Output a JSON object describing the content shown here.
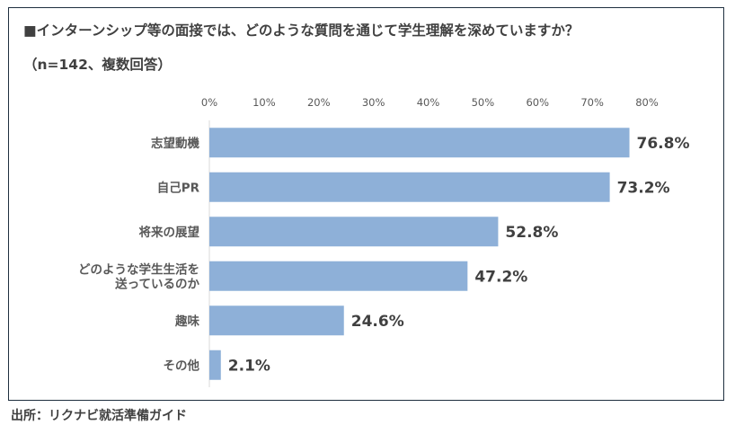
{
  "header": {
    "title": "■インターンシップ等の面接では、どのような質問を通じて学生理解を深めていますか？",
    "subtitle": "（n=142、複数回答）"
  },
  "footer": {
    "source": "出所：リクナビ就活準備ガイド"
  },
  "chart_data": {
    "type": "bar",
    "orientation": "horizontal",
    "categories": [
      "志望動機",
      "自己PR",
      "将来の展望",
      "どのような学生生活を\n送っているのか",
      "趣味",
      "その他"
    ],
    "values": [
      76.8,
      73.2,
      52.8,
      47.2,
      24.6,
      2.1
    ],
    "value_labels": [
      "76.8%",
      "73.2%",
      "52.8%",
      "47.2%",
      "24.6%",
      "2.1%"
    ],
    "xlim": [
      0,
      80
    ],
    "x_ticks": [
      "0%",
      "10%",
      "20%",
      "30%",
      "40%",
      "50%",
      "60%",
      "70%",
      "80%"
    ],
    "grid": false,
    "legend": "none",
    "colors": {
      "bar": "#8eb0d8",
      "axis_text": "#595959",
      "value_text": "#404040"
    }
  }
}
